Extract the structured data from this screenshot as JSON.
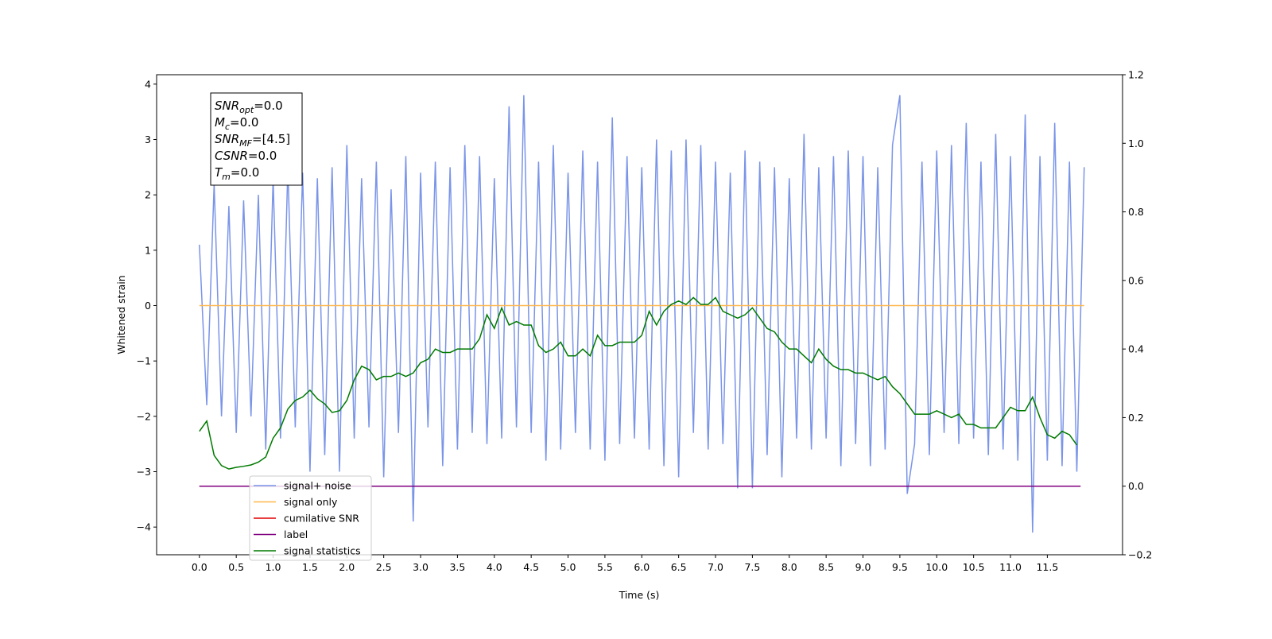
{
  "chart_data": {
    "type": "line",
    "xlabel": "Time (s)",
    "ylabel": "Whitened strain",
    "xlim": [
      -0.58,
      12.52
    ],
    "ylim": [
      -4.5,
      4.17
    ],
    "y2lim": [
      -0.2,
      1.2
    ],
    "xticks": [
      {
        "value": 0,
        "label": "0.0"
      },
      0.5,
      {
        "value": 1,
        "label": "1.0"
      },
      1.5,
      {
        "value": 2,
        "label": "2.0"
      },
      2.5,
      {
        "value": 3,
        "label": "3.0"
      },
      3.5,
      {
        "value": 4,
        "label": "4.0"
      },
      4.5,
      {
        "value": 5,
        "label": "5.0"
      },
      5.5,
      {
        "value": 6,
        "label": "6.0"
      },
      6.5,
      {
        "value": 7,
        "label": "7.0"
      },
      7.5,
      {
        "value": 8,
        "label": "8.0"
      },
      8.5,
      {
        "value": 9,
        "label": "9.0"
      },
      9.5,
      {
        "value": 10,
        "label": "10.0"
      },
      10.5,
      {
        "value": 11,
        "label": "11.0"
      },
      11.5
    ],
    "yticks": [
      {
        "value": -4,
        "label": "−4"
      },
      {
        "value": -3,
        "label": "−3"
      },
      {
        "value": -2,
        "label": "−2"
      },
      {
        "value": -1,
        "label": "−1"
      },
      0,
      1,
      2,
      3,
      4
    ],
    "y2ticks": [
      {
        "value": -0.2,
        "label": "−0.2"
      },
      {
        "value": 0,
        "label": "0.0"
      },
      0.2,
      0.4,
      0.6,
      0.8,
      {
        "value": 1,
        "label": "1.0"
      },
      1.2
    ],
    "legend": "lower left",
    "annotation": [
      {
        "main": "SNR",
        "sub": "opt",
        "rest": "=0.0"
      },
      {
        "main": "M",
        "sub": "c",
        "rest": "=0.0"
      },
      {
        "main": "SNR",
        "sub": "MF",
        "rest": "=[4.5]"
      },
      {
        "main": "CSNR",
        "sub": null,
        "rest": "=0.0"
      },
      {
        "main": "T",
        "sub": "m",
        "rest": "=0.0"
      }
    ],
    "series": [
      {
        "name": "signal+ noise",
        "color": "#7a94e8",
        "axis": "y",
        "x": [
          0,
          0.1,
          0.2,
          0.3,
          0.4,
          0.5,
          0.6,
          0.7,
          0.8,
          0.9,
          1,
          1.1,
          1.2,
          1.3,
          1.4,
          1.5,
          1.6,
          1.7,
          1.8,
          1.9,
          2,
          2.1,
          2.2,
          2.3,
          2.4,
          2.5,
          2.6,
          2.7,
          2.8,
          2.9,
          3,
          3.1,
          3.2,
          3.3,
          3.4,
          3.5,
          3.6,
          3.7,
          3.8,
          3.9,
          4,
          4.1,
          4.2,
          4.3,
          4.4,
          4.5,
          4.6,
          4.7,
          4.8,
          4.9,
          5,
          5.1,
          5.2,
          5.3,
          5.4,
          5.5,
          5.6,
          5.7,
          5.8,
          5.9,
          6,
          6.1,
          6.2,
          6.3,
          6.4,
          6.5,
          6.6,
          6.7,
          6.8,
          6.9,
          7,
          7.1,
          7.2,
          7.3,
          7.4,
          7.5,
          7.6,
          7.7,
          7.8,
          7.9,
          8,
          8.1,
          8.2,
          8.3,
          8.4,
          8.5,
          8.6,
          8.7,
          8.8,
          8.9,
          9,
          9.1,
          9.2,
          9.3,
          9.4,
          9.5,
          9.6,
          9.7,
          9.8,
          9.9,
          10,
          10.1,
          10.2,
          10.3,
          10.4,
          10.5,
          10.6,
          10.7,
          10.8,
          10.9,
          11,
          11.1,
          11.2,
          11.3,
          11.4,
          11.5,
          11.6,
          11.7,
          11.8,
          11.9,
          12
        ],
        "values": [
          1.1,
          -1.8,
          2.2,
          -2.0,
          1.8,
          -2.3,
          1.9,
          -2.0,
          2.0,
          -2.6,
          2.3,
          -2.4,
          2.5,
          -2.2,
          2.4,
          -3.0,
          2.3,
          -2.7,
          2.5,
          -3.0,
          2.9,
          -2.4,
          2.3,
          -2.2,
          2.6,
          -3.1,
          2.1,
          -2.3,
          2.7,
          -3.9,
          2.4,
          -2.2,
          2.6,
          -2.9,
          2.5,
          -2.6,
          2.9,
          -2.3,
          2.7,
          -2.5,
          2.3,
          -2.4,
          3.6,
          -2.2,
          3.8,
          -2.3,
          2.6,
          -2.8,
          2.9,
          -2.6,
          2.4,
          -2.3,
          2.8,
          -2.6,
          2.6,
          -2.8,
          3.4,
          -2.5,
          2.7,
          -2.4,
          2.5,
          -2.6,
          3.0,
          -2.9,
          2.8,
          -3.1,
          3.0,
          -2.3,
          2.9,
          -2.6,
          2.6,
          -2.5,
          2.4,
          -3.3,
          2.8,
          -3.3,
          2.6,
          -2.7,
          2.5,
          -3.1,
          2.3,
          -2.4,
          3.1,
          -2.6,
          2.5,
          -2.4,
          2.7,
          -2.9,
          2.8,
          -2.5,
          2.7,
          -2.9,
          2.5,
          -2.6,
          2.9,
          3.8,
          -3.4,
          -2.5,
          2.6,
          -2.7,
          2.8,
          -2.3,
          2.9,
          -2.5,
          3.3,
          -2.4,
          2.6,
          -2.7,
          3.1,
          -2.6,
          2.7,
          -2.8,
          3.45,
          -4.1,
          2.7,
          -2.8,
          3.3,
          -2.9,
          2.6,
          -3.0,
          2.5
        ]
      },
      {
        "name": "signal only",
        "color": "#ffb74d",
        "axis": "y",
        "x": [
          0,
          12
        ],
        "values": [
          0,
          0
        ]
      },
      {
        "name": "cumilative SNR",
        "color": "#e00000",
        "axis": "y2",
        "x": [
          0,
          11.95
        ],
        "values": [
          0,
          0
        ]
      },
      {
        "name": "label",
        "color": "#800080",
        "axis": "y2",
        "x": [
          0,
          11.95
        ],
        "values": [
          0,
          0
        ]
      },
      {
        "name": "signal statistics",
        "color": "#007a00",
        "axis": "y2",
        "x": [
          0,
          0.1,
          0.2,
          0.3,
          0.4,
          0.5,
          0.6,
          0.7,
          0.8,
          0.9,
          1,
          1.1,
          1.2,
          1.3,
          1.4,
          1.5,
          1.6,
          1.7,
          1.8,
          1.9,
          2,
          2.1,
          2.2,
          2.3,
          2.4,
          2.5,
          2.6,
          2.7,
          2.8,
          2.9,
          3,
          3.1,
          3.2,
          3.3,
          3.4,
          3.5,
          3.6,
          3.7,
          3.8,
          3.9,
          4,
          4.1,
          4.2,
          4.3,
          4.4,
          4.5,
          4.6,
          4.7,
          4.8,
          4.9,
          5,
          5.1,
          5.2,
          5.3,
          5.4,
          5.5,
          5.6,
          5.7,
          5.8,
          5.9,
          6,
          6.1,
          6.2,
          6.3,
          6.4,
          6.5,
          6.6,
          6.7,
          6.8,
          6.9,
          7,
          7.1,
          7.2,
          7.3,
          7.4,
          7.5,
          7.6,
          7.7,
          7.8,
          7.9,
          8,
          8.1,
          8.2,
          8.3,
          8.4,
          8.5,
          8.6,
          8.7,
          8.8,
          8.9,
          9,
          9.1,
          9.2,
          9.3,
          9.4,
          9.5,
          9.6,
          9.7,
          9.8,
          9.9,
          10,
          10.1,
          10.2,
          10.3,
          10.4,
          10.5,
          10.6,
          10.7,
          10.8,
          10.9,
          11,
          11.1,
          11.2,
          11.3,
          11.4,
          11.5,
          11.6,
          11.7,
          11.8,
          11.9
        ],
        "values": [
          0.16,
          0.19,
          0.09,
          0.06,
          0.05,
          0.055,
          0.058,
          0.062,
          0.07,
          0.085,
          0.14,
          0.17,
          0.225,
          0.25,
          0.26,
          0.28,
          0.255,
          0.24,
          0.215,
          0.22,
          0.25,
          0.31,
          0.35,
          0.34,
          0.31,
          0.32,
          0.32,
          0.33,
          0.32,
          0.33,
          0.36,
          0.37,
          0.4,
          0.39,
          0.39,
          0.4,
          0.4,
          0.4,
          0.43,
          0.5,
          0.46,
          0.52,
          0.47,
          0.48,
          0.47,
          0.47,
          0.41,
          0.39,
          0.4,
          0.42,
          0.38,
          0.38,
          0.4,
          0.38,
          0.44,
          0.41,
          0.41,
          0.42,
          0.42,
          0.42,
          0.44,
          0.51,
          0.47,
          0.51,
          0.53,
          0.54,
          0.53,
          0.55,
          0.53,
          0.53,
          0.55,
          0.51,
          0.5,
          0.49,
          0.5,
          0.52,
          0.49,
          0.46,
          0.45,
          0.42,
          0.4,
          0.4,
          0.38,
          0.36,
          0.4,
          0.37,
          0.35,
          0.34,
          0.34,
          0.33,
          0.33,
          0.32,
          0.31,
          0.32,
          0.29,
          0.27,
          0.24,
          0.21,
          0.21,
          0.21,
          0.22,
          0.21,
          0.2,
          0.21,
          0.18,
          0.18,
          0.17,
          0.17,
          0.17,
          0.2,
          0.23,
          0.22,
          0.22,
          0.26,
          0.2,
          0.15,
          0.14,
          0.16,
          0.15,
          0.12
        ]
      }
    ]
  }
}
